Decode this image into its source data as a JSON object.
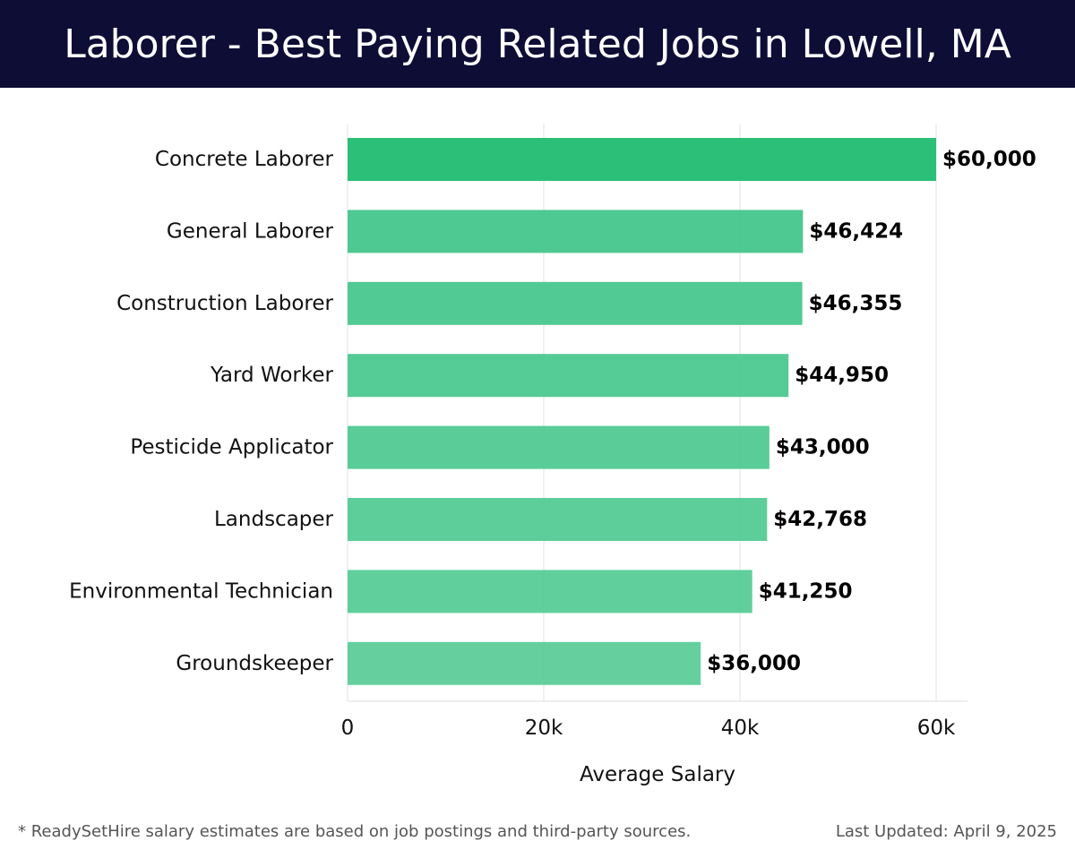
{
  "header": {
    "title": "Laborer - Best Paying Related Jobs in Lowell, MA"
  },
  "chart_data": {
    "type": "bar",
    "orientation": "horizontal",
    "title": "Laborer - Best Paying Related Jobs in Lowell, MA",
    "categories": [
      "Concrete Laborer",
      "General Laborer",
      "Construction Laborer",
      "Yard Worker",
      "Pesticide Applicator",
      "Landscaper",
      "Environmental Technician",
      "Groundskeeper"
    ],
    "values": [
      60000,
      46424,
      46355,
      44950,
      43000,
      42768,
      41250,
      36000
    ],
    "value_labels": [
      "$60,000",
      "$46,424",
      "$46,355",
      "$44,950",
      "$43,000",
      "$42,768",
      "$41,250",
      "$36,000"
    ],
    "xlabel": "Average Salary",
    "ylabel": "",
    "xlim": [
      0,
      63000
    ],
    "x_ticks": [
      0,
      20000,
      40000,
      60000
    ],
    "x_tick_labels": [
      "0",
      "20k",
      "40k",
      "60k"
    ],
    "grid": "vertical",
    "colors": {
      "highlight_bar": "#2bbf78",
      "bar": "#47c78c",
      "grid": "#e3e3e3",
      "header_bg": "#0d0d36"
    }
  },
  "footer": {
    "note": "* ReadySetHire salary estimates are based on job postings and third-party sources.",
    "updated": "Last Updated: April 9, 2025"
  }
}
